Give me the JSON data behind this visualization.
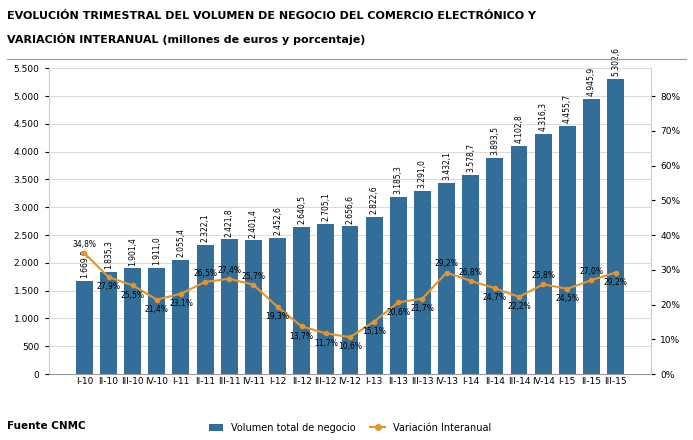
{
  "title_line1": "EVOLUCIÓN TRIMESTRAL DEL VOLUMEN DE NEGOCIO DEL COMERCIO ELECTRÓNICO Y",
  "title_line2": "VARIACIÓN INTERANUAL (millones de euros y porcentaje)",
  "source": "Fuente CNMC",
  "categories": [
    "I-10",
    "II-10",
    "III-10",
    "IV-10",
    "I-11",
    "II-11",
    "III-11",
    "IV-11",
    "I-12",
    "II-12",
    "III-12",
    "IV-12",
    "I-13",
    "II-13",
    "III-13",
    "IV-13",
    "I-14",
    "II-14",
    "III-14",
    "IV-14",
    "I-15",
    "II-15",
    "III-15"
  ],
  "bar_values": [
    1669.9,
    1835.3,
    1901.4,
    1911.0,
    2055.4,
    2322.1,
    2421.8,
    2401.4,
    2452.6,
    2640.5,
    2705.1,
    2656.6,
    2822.6,
    3185.3,
    3291.0,
    3432.1,
    3578.7,
    3893.5,
    4102.8,
    4316.3,
    4455.7,
    4945.9,
    5302.6
  ],
  "line_values": [
    34.8,
    27.9,
    25.5,
    21.4,
    23.1,
    26.5,
    27.4,
    25.7,
    19.3,
    13.7,
    11.7,
    10.6,
    15.1,
    20.6,
    21.7,
    29.2,
    26.8,
    24.7,
    22.2,
    25.8,
    24.5,
    27.0,
    29.2
  ],
  "bar_labels": [
    "1.669,9",
    "1.835,3",
    "1.901,4",
    "1.911,0",
    "2.055,4",
    "2.322,1",
    "2.421,8",
    "2.401,4",
    "2.452,6",
    "2.640,5",
    "2.705,1",
    "2.656,6",
    "2.822,6",
    "3.185,3",
    "3.291,0",
    "3.432,1",
    "3.578,7",
    "3.893,5",
    "4.102,8",
    "4.316,3",
    "4.455,7",
    "4.945,9",
    "5.302,6"
  ],
  "line_labels": [
    "34,8%",
    "27,9%",
    "25,5%",
    "21,4%",
    "23,1%",
    "26,5%",
    "27,4%",
    "25,7%",
    "19,3%",
    "13,7%",
    "11,7%",
    "10,6%",
    "15,1%",
    "20,6%",
    "21,7%",
    "29,2%",
    "26,8%",
    "24,7%",
    "22,2%",
    "25,8%",
    "24,5%",
    "27,0%",
    "29,2%"
  ],
  "bar_color": "#336e99",
  "line_color": "#e8932a",
  "marker_color": "#e8932a",
  "bar_label_fontsize": 5.5,
  "line_label_fontsize": 5.5,
  "ylim_left": [
    0,
    5500
  ],
  "ylim_right": [
    0,
    88
  ],
  "yticks_left": [
    0,
    500,
    1000,
    1500,
    2000,
    2500,
    3000,
    3500,
    4000,
    4500,
    5000,
    5500
  ],
  "yticks_right_pct": [
    0,
    10,
    20,
    30,
    40,
    50,
    60,
    70,
    80
  ],
  "legend_bar_label": "Volumen total de negocio",
  "legend_line_label": "Variación Interanual",
  "background_color": "#ffffff",
  "grid_color": "#cccccc",
  "title_fontsize": 8.0,
  "source_fontsize": 7.5
}
